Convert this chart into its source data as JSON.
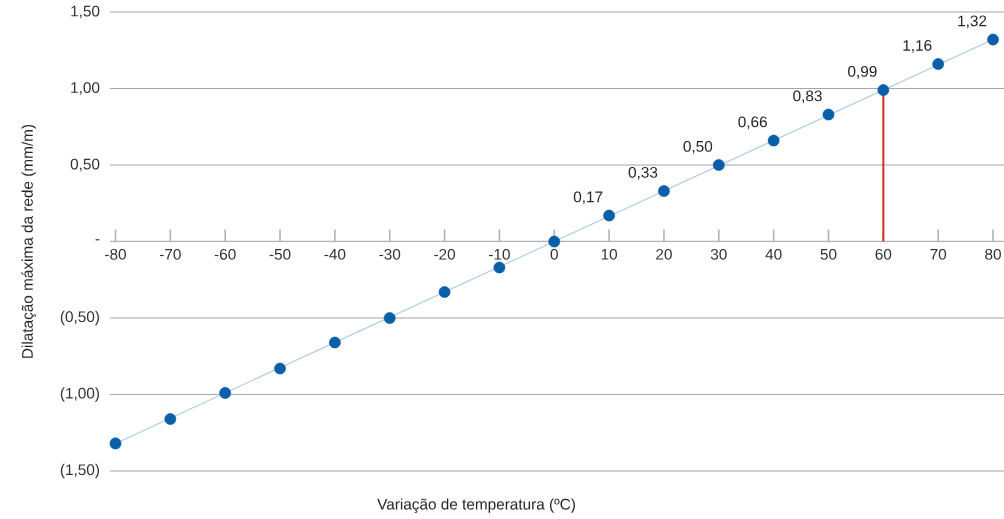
{
  "chart_data": {
    "type": "scatter",
    "xlabel": "Variação de temperatura (ºC)",
    "ylabel": "Dilatação máxima da rede (mm/m)",
    "x": [
      -80,
      -70,
      -60,
      -50,
      -40,
      -30,
      -20,
      -10,
      0,
      10,
      20,
      30,
      40,
      50,
      60,
      70,
      80
    ],
    "series": [
      {
        "color": "#0b5ea8",
        "values": [
          -1.32,
          -1.16,
          -0.99,
          -0.83,
          -0.66,
          -0.5,
          -0.33,
          -0.17,
          0,
          0.17,
          0.33,
          0.5,
          0.66,
          0.83,
          0.99,
          1.16,
          1.32
        ],
        "value_labels": [
          null,
          null,
          null,
          null,
          null,
          null,
          null,
          null,
          null,
          "0,17",
          "0,33",
          "0,50",
          "0,66",
          "0,83",
          "0,99",
          "1,16",
          "1,32"
        ]
      },
      {
        "type": "line",
        "color": "#a9c9e8",
        "x": [
          -80,
          80
        ],
        "values": [
          -1.32,
          1.32
        ]
      }
    ],
    "xlim": [
      -81,
      82
    ],
    "xticks": [
      -80,
      -70,
      -60,
      -50,
      -40,
      -30,
      -20,
      -10,
      0,
      10,
      20,
      30,
      40,
      50,
      60,
      70,
      80
    ],
    "ylim": [
      -1.5,
      1.5
    ],
    "yticks": [
      {
        "value": -1.5,
        "label": "(1,50)"
      },
      {
        "value": -1.0,
        "label": "(1,00)"
      },
      {
        "value": -0.5,
        "label": "(0,50)"
      },
      {
        "value": 0,
        "label": "-"
      },
      {
        "value": 0.5,
        "label": "0,50"
      },
      {
        "value": 1.0,
        "label": "1,00"
      },
      {
        "value": 1.5,
        "label": "1,50"
      }
    ],
    "ref_lines": [
      {
        "axis": "x",
        "value": 60,
        "color": "#d3301f"
      }
    ],
    "grid": "y",
    "marker": "circle"
  }
}
